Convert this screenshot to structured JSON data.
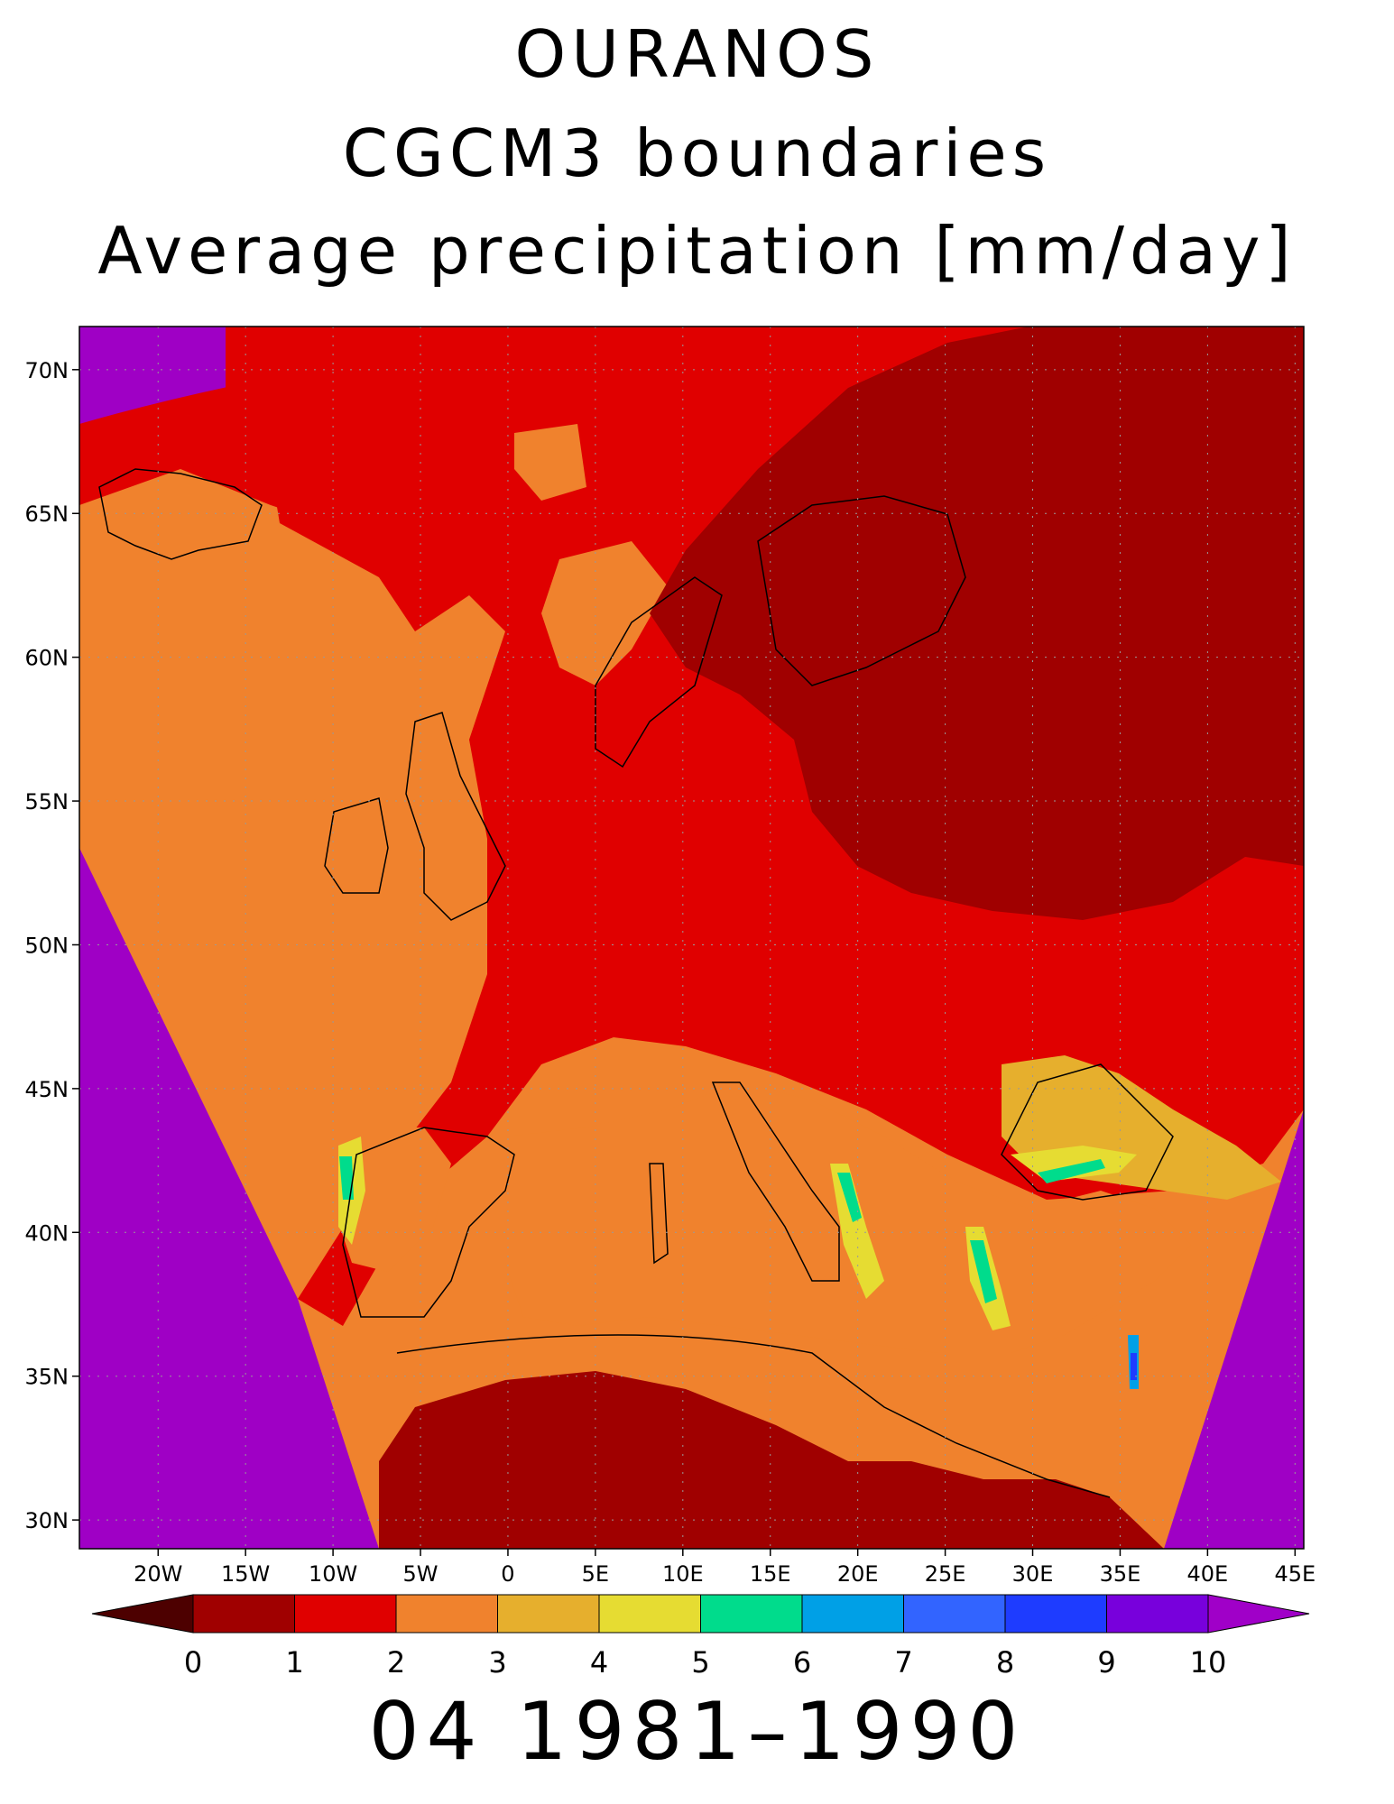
{
  "title": {
    "line1": "OURANOS",
    "line2": "CGCM3 boundaries",
    "line3": "Average precipitation [mm/day]"
  },
  "footer": "04 1981–1990",
  "map": {
    "lon_range": [
      -24.5,
      45.5
    ],
    "lat_range": [
      29.0,
      71.5
    ],
    "lat_ticks": [
      {
        "value": 30,
        "label": "30N"
      },
      {
        "value": 35,
        "label": "35N"
      },
      {
        "value": 40,
        "label": "40N"
      },
      {
        "value": 45,
        "label": "45N"
      },
      {
        "value": 50,
        "label": "50N"
      },
      {
        "value": 55,
        "label": "55N"
      },
      {
        "value": 60,
        "label": "60N"
      },
      {
        "value": 65,
        "label": "65N"
      },
      {
        "value": 70,
        "label": "70N"
      }
    ],
    "lon_ticks": [
      {
        "value": -20,
        "label": "20W"
      },
      {
        "value": -15,
        "label": "15W"
      },
      {
        "value": -10,
        "label": "10W"
      },
      {
        "value": -5,
        "label": "5W"
      },
      {
        "value": 0,
        "label": "0"
      },
      {
        "value": 5,
        "label": "5E"
      },
      {
        "value": 10,
        "label": "10E"
      },
      {
        "value": 15,
        "label": "15E"
      },
      {
        "value": 20,
        "label": "20E"
      },
      {
        "value": 25,
        "label": "25E"
      },
      {
        "value": 30,
        "label": "30E"
      },
      {
        "value": 35,
        "label": "35E"
      },
      {
        "value": 40,
        "label": "40E"
      },
      {
        "value": 45,
        "label": "45E"
      }
    ],
    "out_of_domain_color": "#9f00c5",
    "grid": true
  },
  "colorbar": {
    "labels": [
      "0",
      "1",
      "2",
      "3",
      "4",
      "5",
      "6",
      "7",
      "8",
      "9",
      "10"
    ],
    "below_color": "#4d0000",
    "above_color": "#a000c8",
    "bins": [
      {
        "range": [
          0,
          1
        ],
        "color": "#a00000"
      },
      {
        "range": [
          1,
          2
        ],
        "color": "#e00000"
      },
      {
        "range": [
          2,
          3
        ],
        "color": "#f0822d"
      },
      {
        "range": [
          3,
          4
        ],
        "color": "#e6af2d"
      },
      {
        "range": [
          4,
          5
        ],
        "color": "#e6dc32"
      },
      {
        "range": [
          5,
          6
        ],
        "color": "#00dc8c"
      },
      {
        "range": [
          6,
          7
        ],
        "color": "#00a0e6"
      },
      {
        "range": [
          7,
          8
        ],
        "color": "#3264ff"
      },
      {
        "range": [
          8,
          9
        ],
        "color": "#1e3cff"
      },
      {
        "range": [
          9,
          10
        ],
        "color": "#7800dc"
      }
    ]
  }
}
